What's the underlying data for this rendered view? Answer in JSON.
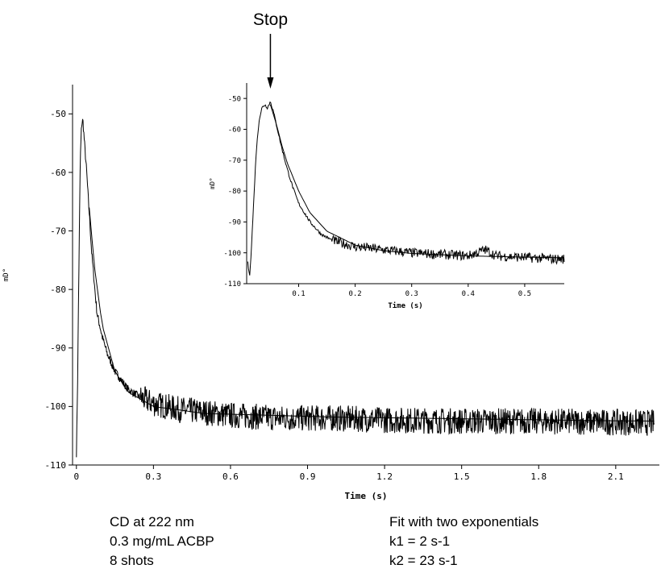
{
  "chart_data": [
    {
      "type": "line",
      "title": "",
      "xlabel": "Time (s)",
      "ylabel": "mD°",
      "xlim": [
        -0.015,
        2.27
      ],
      "ylim": [
        -110,
        -45
      ],
      "xticks": [
        0,
        0.3,
        0.6,
        0.9,
        1.2,
        1.5,
        1.8,
        2.1
      ],
      "xtick_labels": [
        "0",
        "0.3",
        "0.6",
        "0.9",
        "1.2",
        "1.5",
        "1.8",
        "2.1"
      ],
      "yticks": [
        -50,
        -60,
        -70,
        -80,
        -90,
        -100,
        -110
      ],
      "ytick_labels": [
        "-50",
        "-60",
        "-70",
        "-80",
        "-90",
        "-100",
        "-110"
      ],
      "series": [
        {
          "x": [
            0,
            0.005,
            0.01,
            0.015,
            0.02,
            0.025,
            0.03,
            0.04,
            0.05,
            0.06,
            0.07,
            0.08,
            0.1,
            0.12,
            0.15,
            0.2,
            0.25,
            0.3,
            0.4,
            0.5,
            0.6,
            0.8,
            1.0,
            1.2,
            1.5,
            1.8,
            2.1,
            2.25
          ],
          "y": [
            -108,
            -95,
            -75,
            -58,
            -52,
            -51,
            -54,
            -60,
            -67,
            -74,
            -79,
            -84,
            -88,
            -91,
            -94,
            -97,
            -98.5,
            -99.5,
            -100.5,
            -101,
            -101.5,
            -102,
            -102,
            -102.3,
            -102.5,
            -102.5,
            -102.7,
            -102.8
          ]
        }
      ],
      "fit": {
        "x": [
          0.05,
          0.07,
          0.1,
          0.15,
          0.2,
          0.3,
          0.5,
          1.0,
          1.5,
          2.0,
          2.25
        ],
        "y": [
          -66,
          -76,
          -86,
          -94,
          -97.5,
          -100,
          -101.2,
          -101.8,
          -102.1,
          -102.4,
          -102.5
        ]
      }
    },
    {
      "type": "line",
      "title": "",
      "xlabel": "Time (s)",
      "ylabel": "mD°",
      "xlim": [
        0.008,
        0.57
      ],
      "ylim": [
        -110,
        -45
      ],
      "xticks": [
        0.1,
        0.2,
        0.3,
        0.4,
        0.5
      ],
      "xtick_labels": [
        "0.1",
        "0.2",
        "0.3",
        "0.4",
        "0.5"
      ],
      "yticks": [
        -50,
        -60,
        -70,
        -80,
        -90,
        -100,
        -110
      ],
      "ytick_labels": [
        "-50",
        "-60",
        "-70",
        "-80",
        "-90",
        "-100",
        "-110"
      ],
      "series": [
        {
          "x": [
            0.01,
            0.013,
            0.016,
            0.02,
            0.025,
            0.03,
            0.035,
            0.04,
            0.045,
            0.05,
            0.055,
            0.06,
            0.07,
            0.08,
            0.09,
            0.1,
            0.12,
            0.14,
            0.16,
            0.2,
            0.25,
            0.3,
            0.35,
            0.4,
            0.43,
            0.45,
            0.5,
            0.55,
            0.57
          ],
          "y": [
            -103,
            -108,
            -100,
            -85,
            -67,
            -57,
            -53,
            -52,
            -53,
            -51,
            -54,
            -58,
            -66,
            -73,
            -79,
            -84,
            -90,
            -94,
            -96,
            -98,
            -99,
            -100,
            -100.5,
            -101,
            -99,
            -101,
            -101.5,
            -102,
            -102
          ]
        }
      ],
      "fit": {
        "x": [
          0.05,
          0.06,
          0.07,
          0.08,
          0.1,
          0.12,
          0.15,
          0.2,
          0.25,
          0.3,
          0.4,
          0.5,
          0.57
        ],
        "y": [
          -52,
          -58,
          -65,
          -71,
          -80,
          -87,
          -93,
          -97.5,
          -99.3,
          -100.2,
          -101,
          -101.4,
          -101.6
        ]
      },
      "annotation": "Stop",
      "annotation_x": 0.05
    }
  ],
  "notes": {
    "left": [
      "CD at 222 nm",
      "0.3 mg/mL ACBP",
      "8 shots"
    ],
    "right": [
      "Fit with two exponentials",
      "k1 = 2 s-1",
      "k2 = 23 s-1"
    ]
  }
}
